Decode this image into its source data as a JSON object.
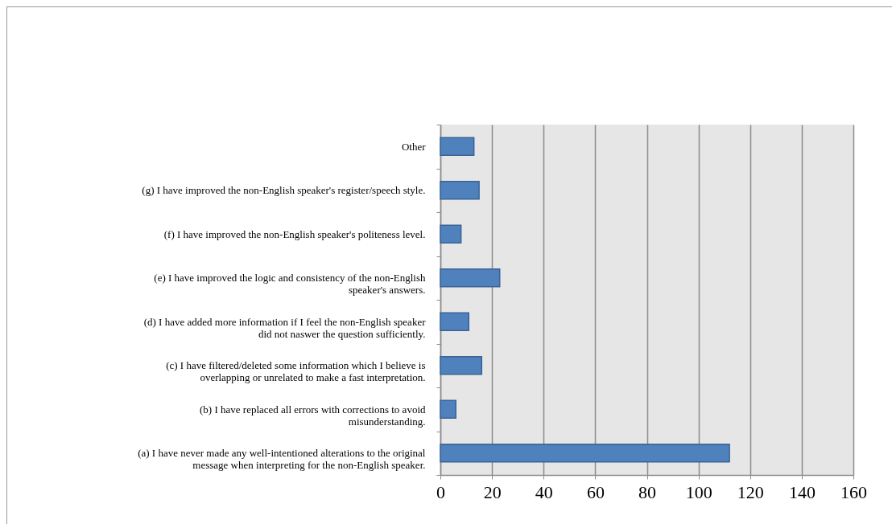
{
  "chart_data": {
    "type": "bar",
    "orientation": "horizontal",
    "categories": [
      "Other",
      "(g) I have improved the non-English speaker's register/speech style.",
      "(f) I have improved the non-English speaker's politeness level.",
      "(e) I have improved the logic and consistency of the non-English speaker's answers.",
      "(d) I have added more information if I feel the non-English speaker did not naswer the question sufficiently.",
      "(c) I have filtered/deleted some information which I believe is overlapping or unrelated to make a fast interpretation.",
      "(b) I have replaced all errors with corrections to avoid misunderstanding.",
      "(a) I have never made any well-intentioned alterations to the original message when interpreting for the non-English speaker."
    ],
    "values": [
      13,
      15,
      8,
      23,
      11,
      16,
      6,
      112
    ],
    "color": "#4f81bd",
    "xlim": [
      0,
      160
    ],
    "xticks": [
      0,
      20,
      40,
      60,
      80,
      100,
      120,
      140,
      160
    ],
    "grid": "x"
  }
}
